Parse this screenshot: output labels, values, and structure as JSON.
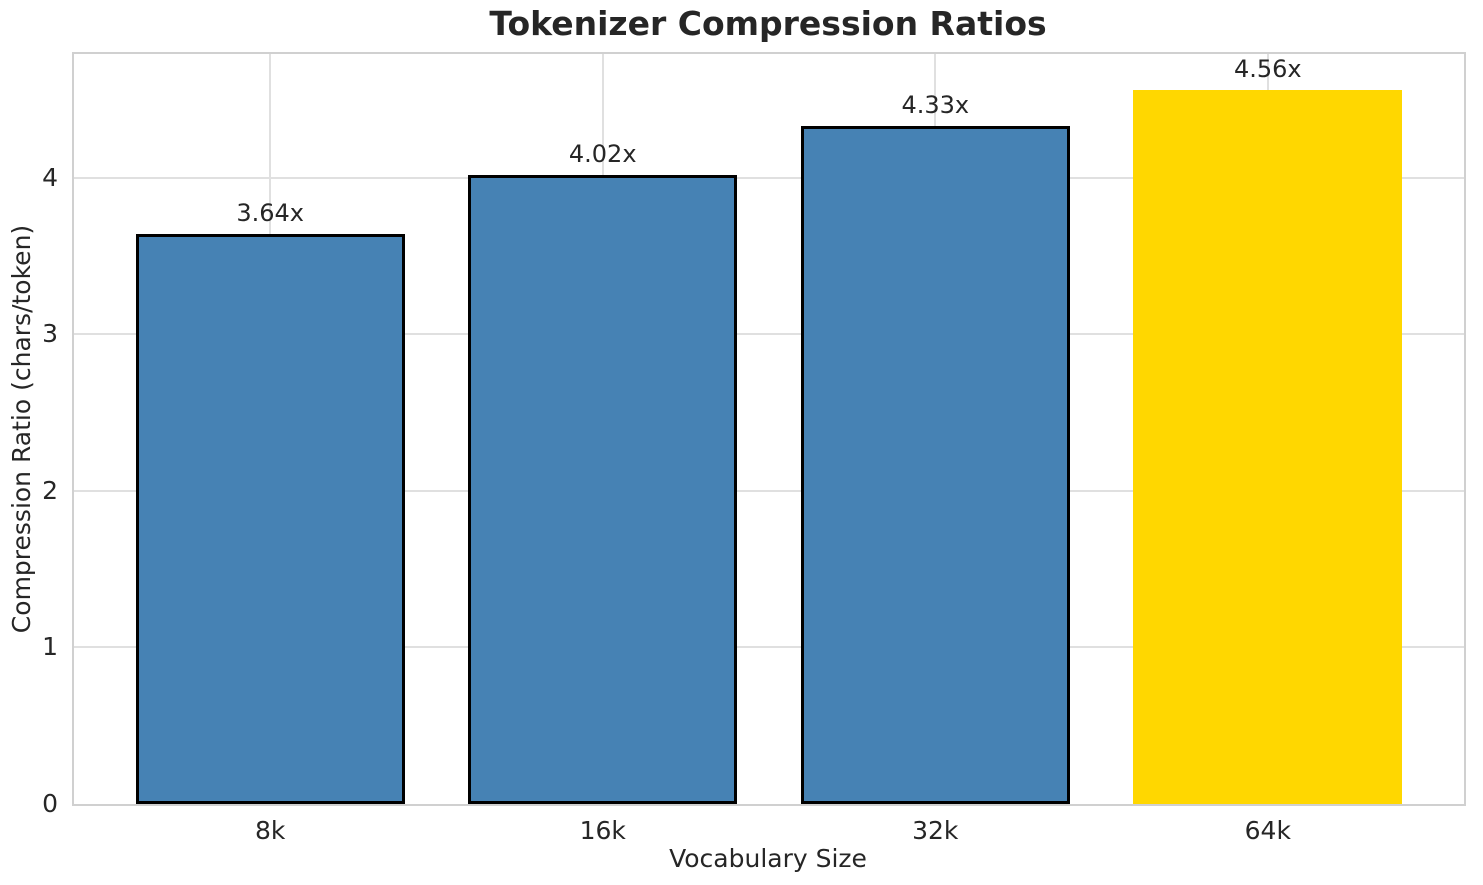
{
  "chart_data": {
    "type": "bar",
    "title": "Tokenizer Compression Ratios",
    "xlabel": "Vocabulary Size",
    "ylabel": "Compression Ratio (chars/token)",
    "categories": [
      "8k",
      "16k",
      "32k",
      "64k"
    ],
    "values": [
      3.64,
      4.02,
      4.33,
      4.56
    ],
    "bar_labels": [
      "3.64x",
      "4.02x",
      "4.33x",
      "4.56x"
    ],
    "bar_colors": [
      "#4682b4",
      "#4682b4",
      "#4682b4",
      "#ffd700"
    ],
    "bar_edge_colors": [
      "#000000",
      "#000000",
      "#000000",
      null
    ],
    "yticks": [
      0,
      1,
      2,
      3,
      4
    ],
    "ytick_labels": [
      "0",
      "1",
      "2",
      "3",
      "4"
    ],
    "ylim": [
      0,
      4.79
    ],
    "xlim": [
      -0.59,
      3.59
    ],
    "bar_width": 0.81,
    "grid": "both",
    "legend": "none"
  },
  "colors": {
    "base_bar": "#4682b4",
    "highlight_bar": "#ffd700",
    "bar_edge": "#000000",
    "grid": "#e0e0e0",
    "spine": "#d0d0d0",
    "text": "#262626",
    "background": "#ffffff"
  }
}
